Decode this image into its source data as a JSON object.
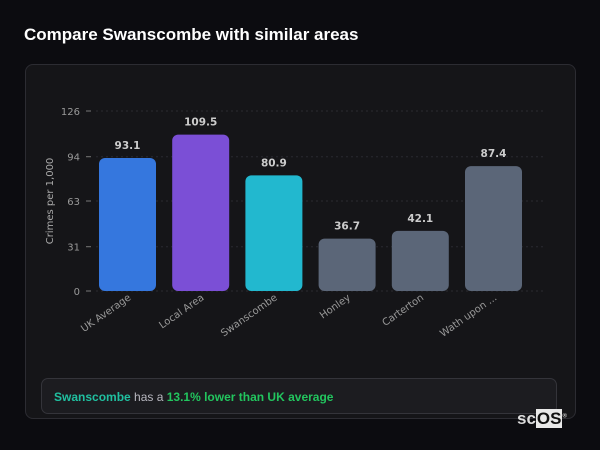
{
  "header": {
    "title": "Compare Swanscombe with similar areas"
  },
  "chart_data": {
    "type": "bar",
    "categories": [
      "UK Average",
      "Local Area",
      "Swanscombe",
      "Honley",
      "Carterton",
      "Wath upon ..."
    ],
    "values": [
      93.1,
      109.5,
      80.9,
      36.7,
      42.1,
      87.4
    ],
    "value_labels": [
      "93.1",
      "109.5",
      "80.9",
      "36.7",
      "42.1",
      "87.4"
    ],
    "colors": [
      "#3577de",
      "#7b4fd6",
      "#22b8cf",
      "#5b6678",
      "#5b6678",
      "#5b6678"
    ],
    "ylabel": "Crimes per 1,000",
    "yticks": [
      0,
      31,
      63,
      94,
      126
    ],
    "ylim": [
      0,
      126
    ],
    "grid": true
  },
  "footer": {
    "area": "Swanscombe",
    "middle": " has a ",
    "comparison": "13.1% lower than UK average"
  },
  "logo": {
    "text_a": "sc",
    "text_b": "OS",
    "mark": "®"
  }
}
